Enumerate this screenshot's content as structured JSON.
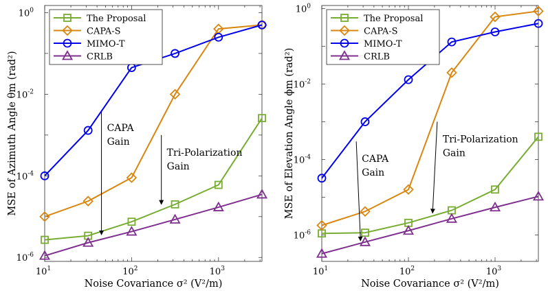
{
  "chart_data": [
    {
      "type": "line",
      "xscale": "log",
      "yscale": "log",
      "xlabel": "Noise Covariance σ² (V²/m)",
      "ylabel": "MSE of Azimuth Angle θm (rad²)",
      "xlim": [
        10,
        3162
      ],
      "ylim": [
        8e-07,
        1.5
      ],
      "x_ticks": [
        10,
        100,
        1000
      ],
      "x_tick_labels": [
        "10^1",
        "10^2",
        "10^3"
      ],
      "y_ticks": [
        1e-06,
        0.0001,
        0.01,
        1
      ],
      "y_tick_labels": [
        "10^-6",
        "10^-4",
        "10^-2",
        "10^0"
      ],
      "grid": false,
      "legend_position": "top-left",
      "x": [
        10,
        31.6,
        100,
        316,
        1000,
        3162
      ],
      "series": [
        {
          "name": "The Proposal",
          "color": "#77ac30",
          "marker": "square",
          "values": [
            2.7e-06,
            3.4e-06,
            7.5e-06,
            2e-05,
            6e-05,
            0.0026
          ]
        },
        {
          "name": "CAPA-S",
          "color": "#d9860f",
          "marker": "diamond",
          "values": [
            1e-05,
            2.4e-05,
            9e-05,
            0.01,
            0.4,
            0.5
          ]
        },
        {
          "name": "MIMO-T",
          "color": "#0000ee",
          "marker": "circle",
          "values": [
            0.0001,
            0.0013,
            0.045,
            0.1,
            0.25,
            0.5
          ]
        },
        {
          "name": "CRLB",
          "color": "#7e2f8e",
          "marker": "triangle",
          "values": [
            1.1e-06,
            2.3e-06,
            4.3e-06,
            8.5e-06,
            1.7e-05,
            3.5e-05
          ]
        }
      ],
      "annotations": [
        {
          "lines": [
            "CAPA",
            "Gain"
          ],
          "x_from": 45,
          "y_from": 0.004,
          "x_to": 45,
          "y_to": 3.6e-06
        },
        {
          "lines": [
            "Tri-Polarization",
            "Gain"
          ],
          "x_from": 220,
          "y_from": 0.001,
          "x_to": 220,
          "y_to": 2e-05
        }
      ]
    },
    {
      "type": "line",
      "xscale": "log",
      "yscale": "log",
      "xlabel": "Noise Covariance σ² (V²/m)",
      "ylabel": "MSE of Elevation Angle ϕm (rad²)",
      "xlim": [
        10,
        3162
      ],
      "ylim": [
        2e-07,
        1.2
      ],
      "x_ticks": [
        10,
        100,
        1000
      ],
      "x_tick_labels": [
        "10^1",
        "10^2",
        "10^3"
      ],
      "y_ticks": [
        1e-06,
        0.0001,
        0.01,
        1
      ],
      "y_tick_labels": [
        "10^-6",
        "10^-4",
        "10^-2",
        "10^0"
      ],
      "grid": false,
      "legend_position": "top-left",
      "x": [
        10,
        31.6,
        100,
        316,
        1000,
        3162
      ],
      "series": [
        {
          "name": "The Proposal",
          "color": "#77ac30",
          "marker": "square",
          "values": [
            1.1e-06,
            1.15e-06,
            2.1e-06,
            4.5e-06,
            1.6e-05,
            0.0004
          ]
        },
        {
          "name": "CAPA-S",
          "color": "#d9860f",
          "marker": "diamond",
          "values": [
            1.8e-06,
            4.2e-06,
            1.6e-05,
            0.02,
            0.6,
            0.85
          ]
        },
        {
          "name": "MIMO-T",
          "color": "#0000ee",
          "marker": "circle",
          "values": [
            3.2e-05,
            0.001,
            0.013,
            0.13,
            0.24,
            0.4
          ]
        },
        {
          "name": "CRLB",
          "color": "#7e2f8e",
          "marker": "triangle",
          "values": [
            3.2e-07,
            6.5e-07,
            1.3e-06,
            2.7e-06,
            5.4e-06,
            1.05e-05
          ]
        }
      ],
      "annotations": [
        {
          "lines": [
            "CAPA",
            "Gain"
          ],
          "x_from": 25,
          "y_from": 0.0003,
          "x_to": 28,
          "y_to": 7e-07
        },
        {
          "lines": [
            "Tri-Polarization",
            "Gain"
          ],
          "x_from": 215,
          "y_from": 0.001,
          "x_to": 190,
          "y_to": 3.8e-06
        }
      ]
    }
  ]
}
